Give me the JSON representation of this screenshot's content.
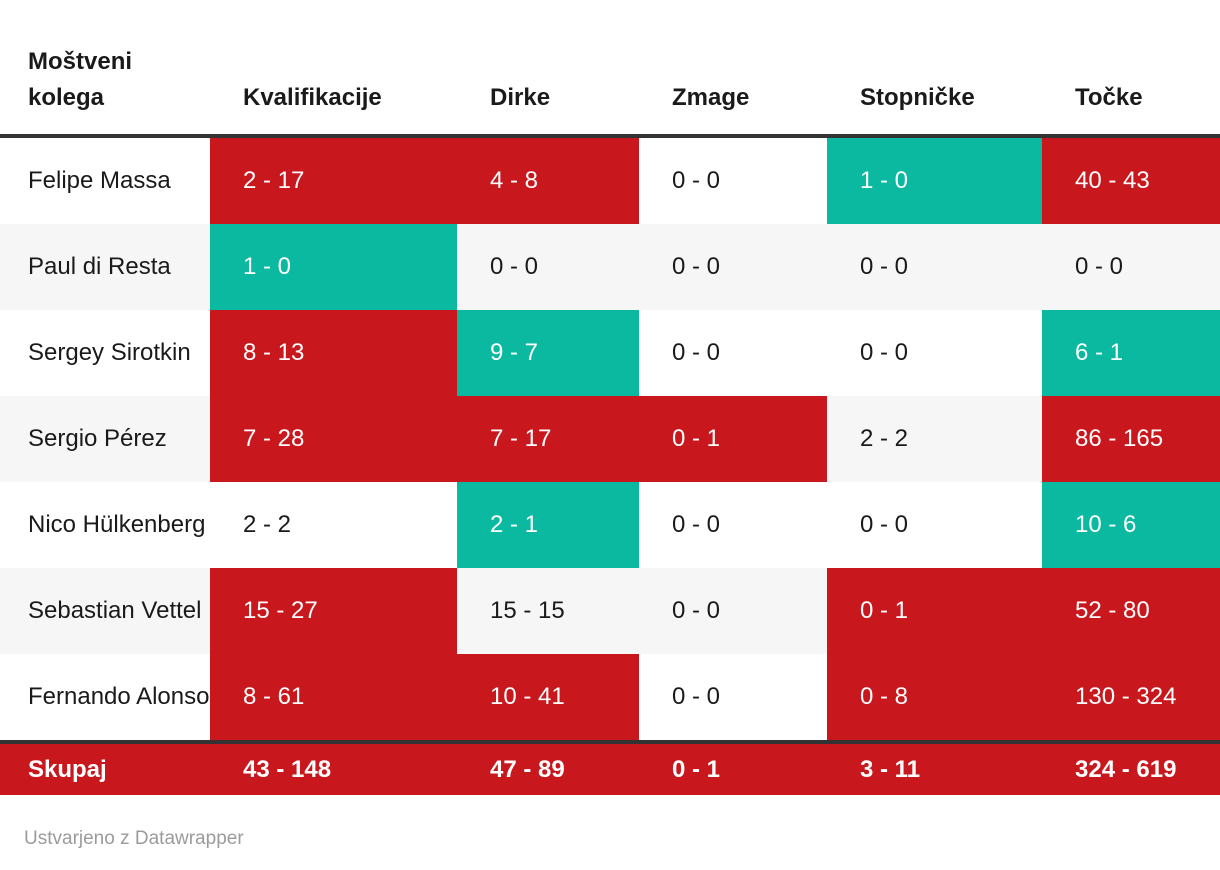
{
  "colors": {
    "loss_red": "#c8181e",
    "win_green": "#0bb9a0",
    "stripe_gray": "#f6f6f6",
    "rule_dark": "#333333",
    "text_dark": "#1a1a1a",
    "text_light": "#ffffff",
    "caption_gray": "#9b9b9b"
  },
  "table": {
    "columns": [
      {
        "key": "name",
        "label": "Moštveni kolega"
      },
      {
        "key": "kvalifikacije",
        "label": "Kvalifikacije"
      },
      {
        "key": "dirke",
        "label": "Dirke"
      },
      {
        "key": "zmage",
        "label": "Zmage"
      },
      {
        "key": "stopnicke",
        "label": "Stopničke"
      },
      {
        "key": "tocke",
        "label": "Točke"
      }
    ],
    "rows": [
      {
        "name": "Felipe Massa",
        "cells": [
          {
            "value": "2 - 17",
            "color": "red"
          },
          {
            "value": "4 - 8",
            "color": "red"
          },
          {
            "value": "0 - 0",
            "color": "plain"
          },
          {
            "value": "1 - 0",
            "color": "green"
          },
          {
            "value": "40 - 43",
            "color": "red"
          }
        ]
      },
      {
        "name": "Paul di Resta",
        "cells": [
          {
            "value": "1 - 0",
            "color": "green"
          },
          {
            "value": "0 - 0",
            "color": "plain"
          },
          {
            "value": "0 - 0",
            "color": "plain"
          },
          {
            "value": "0 - 0",
            "color": "plain"
          },
          {
            "value": "0 - 0",
            "color": "plain"
          }
        ]
      },
      {
        "name": "Sergey Sirotkin",
        "cells": [
          {
            "value": "8 - 13",
            "color": "red"
          },
          {
            "value": "9 - 7",
            "color": "green"
          },
          {
            "value": "0 - 0",
            "color": "plain"
          },
          {
            "value": "0 - 0",
            "color": "plain"
          },
          {
            "value": "6 - 1",
            "color": "green"
          }
        ]
      },
      {
        "name": "Sergio Pérez",
        "cells": [
          {
            "value": "7 - 28",
            "color": "red"
          },
          {
            "value": "7 - 17",
            "color": "red"
          },
          {
            "value": "0 - 1",
            "color": "red"
          },
          {
            "value": "2 - 2",
            "color": "plain"
          },
          {
            "value": "86 - 165",
            "color": "red"
          }
        ]
      },
      {
        "name": "Nico Hülkenberg",
        "cells": [
          {
            "value": "2 - 2",
            "color": "plain"
          },
          {
            "value": "2 - 1",
            "color": "green"
          },
          {
            "value": "0 - 0",
            "color": "plain"
          },
          {
            "value": "0 - 0",
            "color": "plain"
          },
          {
            "value": "10 - 6",
            "color": "green"
          }
        ]
      },
      {
        "name": "Sebastian Vettel",
        "cells": [
          {
            "value": "15 - 27",
            "color": "red"
          },
          {
            "value": "15 - 15",
            "color": "plain"
          },
          {
            "value": "0 - 0",
            "color": "plain"
          },
          {
            "value": "0 - 1",
            "color": "red"
          },
          {
            "value": "52 - 80",
            "color": "red"
          }
        ]
      },
      {
        "name": "Fernando Alonso",
        "cells": [
          {
            "value": "8 - 61",
            "color": "red"
          },
          {
            "value": "10 - 41",
            "color": "red"
          },
          {
            "value": "0 - 0",
            "color": "plain"
          },
          {
            "value": "0 - 8",
            "color": "red"
          },
          {
            "value": "130 - 324",
            "color": "red"
          }
        ]
      }
    ],
    "footer": {
      "label": "Skupaj",
      "cells": [
        {
          "value": "43 - 148"
        },
        {
          "value": "47 - 89"
        },
        {
          "value": "0 - 1"
        },
        {
          "value": "3 - 11"
        },
        {
          "value": "324 - 619"
        }
      ]
    }
  },
  "caption": "Ustvarjeno z Datawrapper",
  "chart_data": {
    "type": "table",
    "title": "",
    "columns": [
      "Moštveni kolega",
      "Kvalifikacije",
      "Dirke",
      "Zmage",
      "Stopničke",
      "Točke"
    ],
    "rows": [
      [
        "Felipe Massa",
        "2 - 17",
        "4 - 8",
        "0 - 0",
        "1 - 0",
        "40 - 43"
      ],
      [
        "Paul di Resta",
        "1 - 0",
        "0 - 0",
        "0 - 0",
        "0 - 0",
        "0 - 0"
      ],
      [
        "Sergey Sirotkin",
        "8 - 13",
        "9 - 7",
        "0 - 0",
        "0 - 0",
        "6 - 1"
      ],
      [
        "Sergio Pérez",
        "7 - 28",
        "7 - 17",
        "0 - 1",
        "2 - 2",
        "86 - 165"
      ],
      [
        "Nico Hülkenberg",
        "2 - 2",
        "2 - 1",
        "0 - 0",
        "0 - 0",
        "10 - 6"
      ],
      [
        "Sebastian Vettel",
        "15 - 27",
        "15 - 15",
        "0 - 0",
        "0 - 1",
        "52 - 80"
      ],
      [
        "Fernando Alonso",
        "8 - 61",
        "10 - 41",
        "0 - 0",
        "0 - 8",
        "130 - 324"
      ],
      [
        "Skupaj",
        "43 - 148",
        "47 - 89",
        "0 - 1",
        "3 - 11",
        "324 - 619"
      ]
    ],
    "cell_highlight": [
      [
        "none",
        "red",
        "red",
        "none",
        "green",
        "red"
      ],
      [
        "none",
        "green",
        "none",
        "none",
        "none",
        "none"
      ],
      [
        "none",
        "red",
        "green",
        "none",
        "none",
        "green"
      ],
      [
        "none",
        "red",
        "red",
        "red",
        "none",
        "red"
      ],
      [
        "none",
        "none",
        "green",
        "none",
        "none",
        "green"
      ],
      [
        "none",
        "red",
        "none",
        "none",
        "red",
        "red"
      ],
      [
        "none",
        "red",
        "red",
        "none",
        "red",
        "red"
      ],
      [
        "red",
        "red",
        "red",
        "red",
        "red",
        "red"
      ]
    ],
    "legend_meaning": "green = teammate ahead, red = teammate behind, plain = tied/zero",
    "row_striping": "alternate rows #ffffff / #f6f6f6"
  }
}
